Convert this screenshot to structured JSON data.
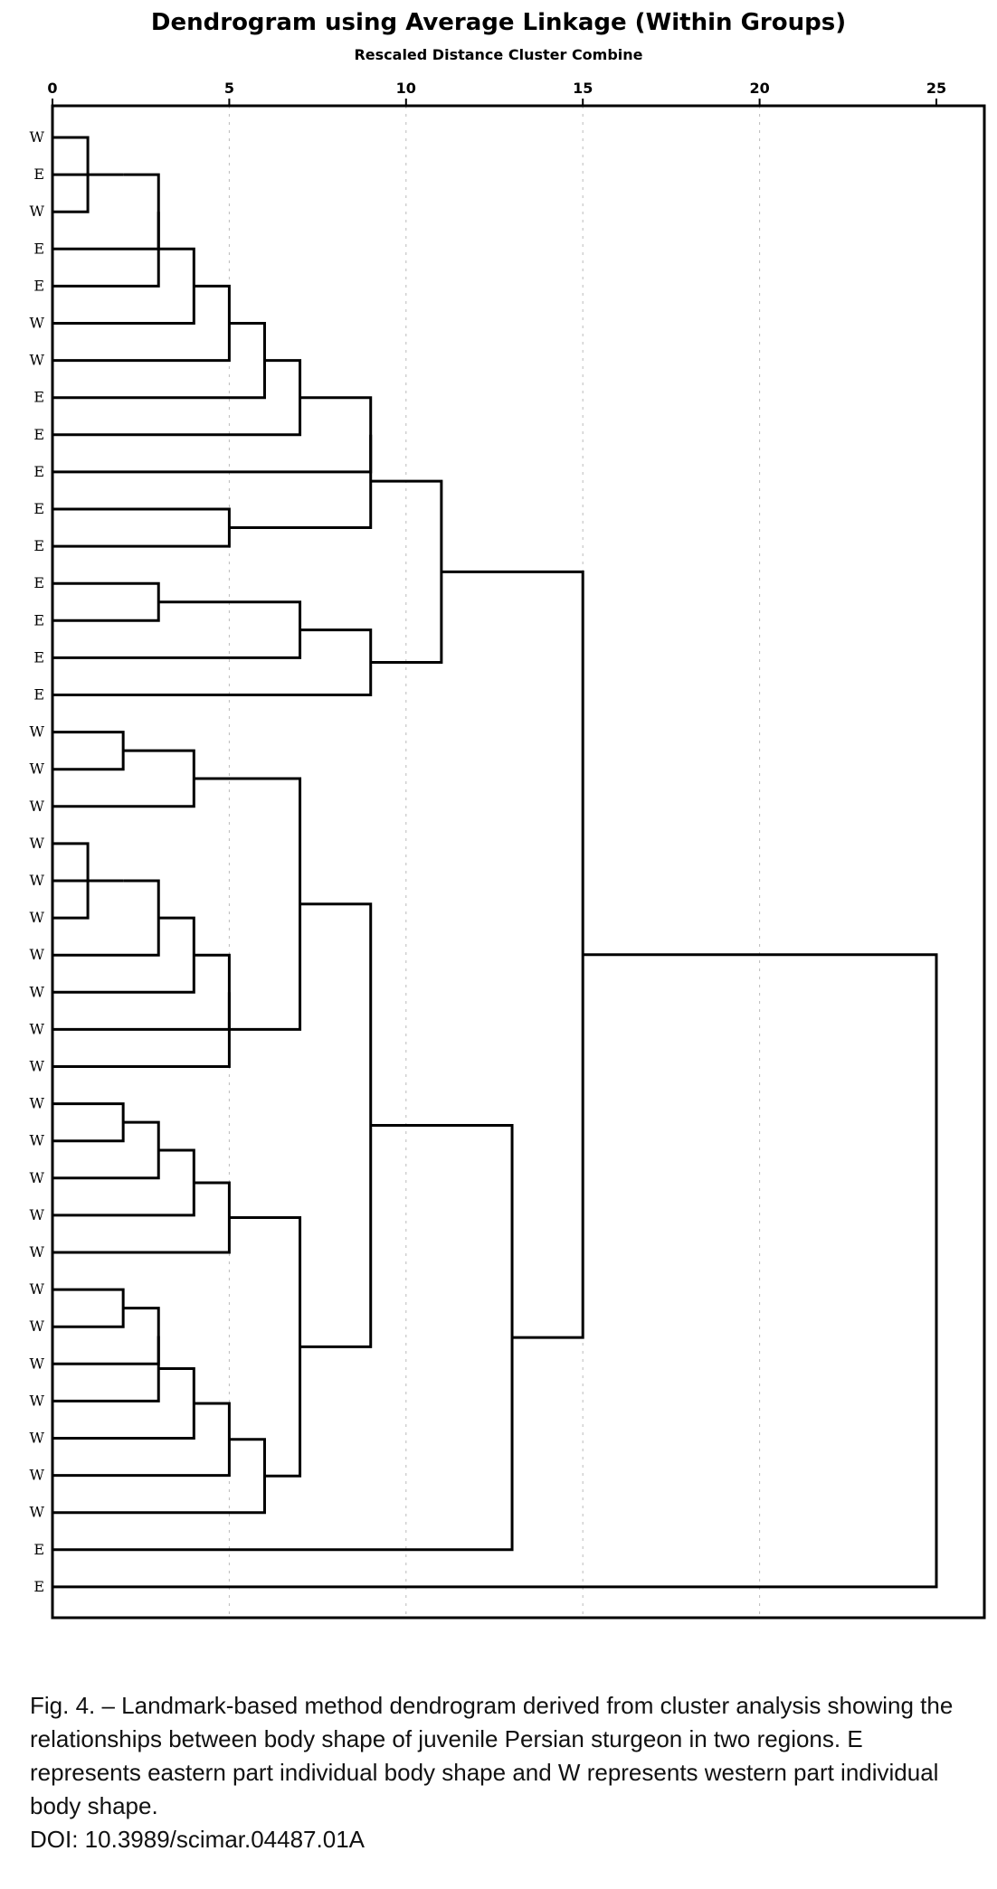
{
  "chart_data": {
    "type": "dendrogram",
    "title": "Dendrogram using Average Linkage (Within Groups)",
    "subtitle": "Rescaled Distance Cluster Combine",
    "xlim": [
      0,
      25
    ],
    "x_ticks": [
      "0",
      "5",
      "10",
      "15",
      "20",
      "25"
    ],
    "grid": true,
    "leaf_labels": [
      "W",
      "E",
      "W",
      "E",
      "E",
      "W",
      "W",
      "E",
      "E",
      "E",
      "E",
      "E",
      "E",
      "E",
      "E",
      "E",
      "W",
      "W",
      "W",
      "W",
      "W",
      "W",
      "W",
      "W",
      "W",
      "W",
      "W",
      "W",
      "W",
      "W",
      "W",
      "W",
      "W",
      "W",
      "W",
      "W",
      "W",
      "W",
      "E",
      "E"
    ],
    "merges": [
      {
        "a": 0,
        "b": 2,
        "distance": 1
      },
      {
        "a": "m0",
        "b": 1,
        "distance": 2
      },
      {
        "a": "m1",
        "b": 3,
        "distance": 3
      },
      {
        "a": "m2",
        "b": 4,
        "distance": 3
      },
      {
        "a": "m3",
        "b": 5,
        "distance": 4
      },
      {
        "a": "m4",
        "b": 6,
        "distance": 5
      },
      {
        "a": "m5",
        "b": 7,
        "distance": 6
      },
      {
        "a": "m6",
        "b": 8,
        "distance": 7
      },
      {
        "a": 10,
        "b": 11,
        "distance": 5
      },
      {
        "a": "m7",
        "b": 9,
        "distance": 9
      },
      {
        "a": 12,
        "b": 13,
        "distance": 3
      },
      {
        "a": "m10",
        "b": 14,
        "distance": 7
      },
      {
        "a": "m11",
        "b": 15,
        "distance": 9
      },
      {
        "a": "m9",
        "b": "m8",
        "distance": 9
      },
      {
        "a": "m13",
        "b": "m12",
        "distance": 11
      },
      {
        "a": 16,
        "b": 17,
        "distance": 2
      },
      {
        "a": "m15",
        "b": 18,
        "distance": 4
      },
      {
        "a": 19,
        "b": 21,
        "distance": 1
      },
      {
        "a": "m17",
        "b": 20,
        "distance": 2
      },
      {
        "a": "m18",
        "b": 22,
        "distance": 3
      },
      {
        "a": "m19",
        "b": 23,
        "distance": 4
      },
      {
        "a": "m20",
        "b": 24,
        "distance": 5
      },
      {
        "a": "m21",
        "b": 25,
        "distance": 5
      },
      {
        "a": "m16",
        "b": "m22",
        "distance": 7
      },
      {
        "a": 26,
        "b": 27,
        "distance": 2
      },
      {
        "a": "m24",
        "b": 28,
        "distance": 3
      },
      {
        "a": "m25",
        "b": 29,
        "distance": 4
      },
      {
        "a": "m26",
        "b": 30,
        "distance": 5
      },
      {
        "a": 31,
        "b": 32,
        "distance": 2
      },
      {
        "a": "m28",
        "b": 33,
        "distance": 3
      },
      {
        "a": "m29",
        "b": 34,
        "distance": 3
      },
      {
        "a": "m30",
        "b": 35,
        "distance": 4
      },
      {
        "a": "m31",
        "b": 36,
        "distance": 5
      },
      {
        "a": "m32",
        "b": 37,
        "distance": 6
      },
      {
        "a": "m27",
        "b": "m33",
        "distance": 7
      },
      {
        "a": "m23",
        "b": "m34",
        "distance": 9
      },
      {
        "a": "m35",
        "b": 38,
        "distance": 13
      },
      {
        "a": "m14",
        "b": "m36",
        "distance": 15
      },
      {
        "a": "m37",
        "b": 39,
        "distance": 25
      }
    ]
  },
  "caption": {
    "text": "Fig. 4. – Landmark-based method dendrogram derived from cluster analysis showing the relationships between body shape of juvenile Persian sturgeon in two regions. E represents eastern part individual body shape and W represents western part individual body shape.",
    "doi": "DOI: 10.3989/scimar.04487.01A"
  }
}
